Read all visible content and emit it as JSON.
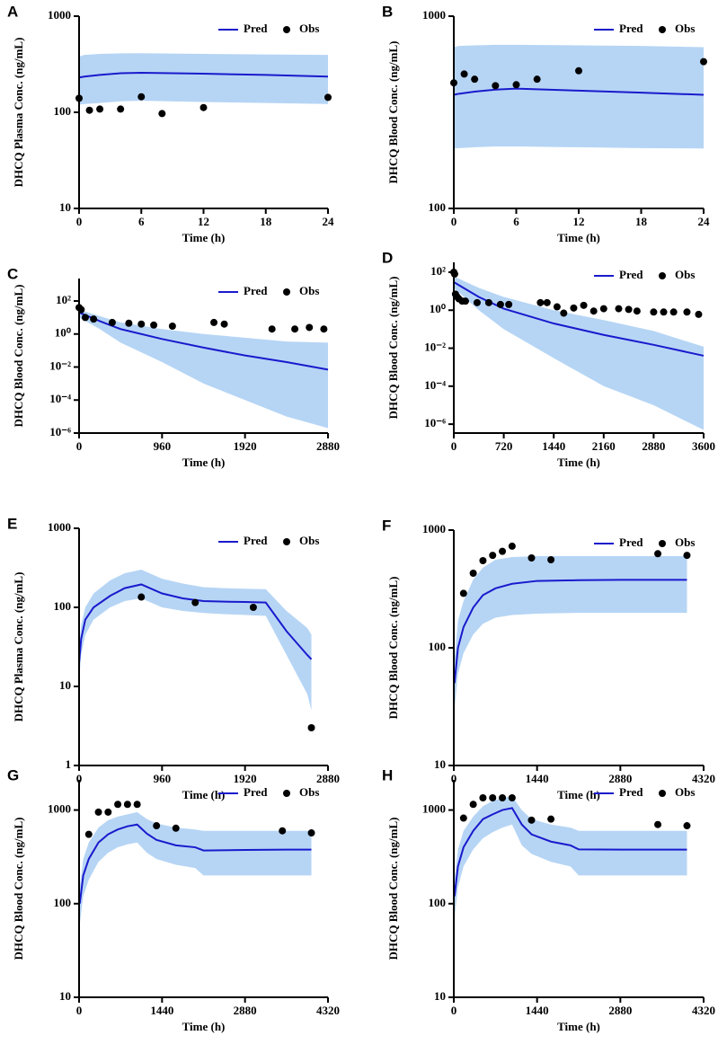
{
  "chart_data": [
    {
      "type": "line",
      "panel_label": "A",
      "xlabel": "Time (h)",
      "ylabel": "DHCQ Plasma Conc. (ng/mL)",
      "log_scale": true,
      "legend": "upper right",
      "band_color": "#b6d5f5",
      "xlim": [
        0,
        24
      ],
      "xticks": [
        0,
        6,
        12,
        18,
        24
      ],
      "ylim": [
        10,
        1000
      ],
      "yticks": [
        10,
        100,
        1000
      ],
      "series": [
        {
          "name": "Pred",
          "color": "#1a1acc",
          "x": [
            0,
            0.5,
            2,
            4,
            6,
            12,
            18,
            24
          ],
          "values": [
            230,
            235,
            245,
            255,
            258,
            252,
            245,
            235
          ],
          "lower": [
            120,
            122,
            125,
            130,
            132,
            128,
            125,
            122
          ],
          "upper": [
            380,
            395,
            405,
            410,
            412,
            405,
            400,
            395
          ]
        },
        {
          "name": "Obs",
          "color": "#000000",
          "x": [
            0,
            1,
            2,
            4,
            6,
            8,
            12,
            24
          ],
          "values": [
            140,
            105,
            108,
            108,
            145,
            97,
            112,
            143
          ]
        }
      ]
    },
    {
      "type": "line",
      "panel_label": "B",
      "xlabel": "Time (h)",
      "ylabel": "DHCQ Blood Conc. (ng/mL)",
      "log_scale": true,
      "legend": "upper right",
      "band_color": "#b6d5f5",
      "xlim": [
        0,
        24
      ],
      "xticks": [
        0,
        6,
        12,
        18,
        24
      ],
      "ylim": [
        100,
        1000
      ],
      "yticks": [
        100,
        1000
      ],
      "series": [
        {
          "name": "Pred",
          "color": "#1a1acc",
          "x": [
            0,
            0.5,
            2,
            4,
            6,
            12,
            18,
            24
          ],
          "values": [
            390,
            395,
            405,
            415,
            420,
            410,
            400,
            390
          ],
          "lower": [
            205,
            206,
            208,
            210,
            210,
            208,
            206,
            205
          ],
          "upper": [
            690,
            700,
            705,
            710,
            710,
            705,
            700,
            690
          ]
        },
        {
          "name": "Obs",
          "color": "#000000",
          "x": [
            0,
            1,
            2,
            4,
            6,
            8,
            12,
            24
          ],
          "values": [
            450,
            500,
            470,
            435,
            440,
            470,
            520,
            580
          ]
        }
      ]
    },
    {
      "type": "line",
      "panel_label": "C",
      "xlabel": "Time (h)",
      "ylabel": "DHCQ Blood Conc. (ng/mL)",
      "log_scale": true,
      "legend": "upper right",
      "band_color": "#b6d5f5",
      "xlim": [
        0,
        2880
      ],
      "xticks": [
        0,
        960,
        1920,
        2880
      ],
      "ylim": [
        1e-06,
        2300
      ],
      "yticks": [
        {
          "value": 1e-06,
          "label": "10⁻⁶"
        },
        {
          "value": 0.0001,
          "label": "10⁻⁴"
        },
        {
          "value": 0.01,
          "label": "10⁻²"
        },
        {
          "value": 1,
          "label": "10⁰"
        },
        {
          "value": 100,
          "label": "10²"
        }
      ],
      "series": [
        {
          "name": "Pred",
          "color": "#1a1acc",
          "x": [
            0,
            240,
            480,
            960,
            1440,
            1920,
            2400,
            2880
          ],
          "values": [
            20,
            6,
            2,
            0.5,
            0.15,
            0.05,
            0.02,
            0.007
          ],
          "lower": [
            10,
            2,
            0.3,
            0.02,
            0.001,
            0.0001,
            1e-05,
            2e-06
          ],
          "upper": [
            30,
            12,
            5,
            2,
            1,
            0.6,
            0.35,
            0.3
          ]
        },
        {
          "name": "Obs",
          "color": "#000000",
          "x": [
            0,
            24,
            72,
            168,
            384,
            576,
            720,
            864,
            1080,
            1560,
            1680,
            2232,
            2496,
            2664,
            2832
          ],
          "values": [
            40,
            30,
            10,
            8,
            5,
            4.5,
            4,
            3.5,
            3,
            5,
            4,
            2,
            2,
            2.5,
            2
          ]
        }
      ]
    },
    {
      "type": "line",
      "panel_label": "D",
      "xlabel": "Time (h)",
      "ylabel": "DHCQ Blood Conc. (ng/mL)",
      "log_scale": true,
      "legend": "upper right",
      "band_color": "#b6d5f5",
      "xlim": [
        0,
        3600
      ],
      "xticks": [
        0,
        720,
        1440,
        2160,
        2880,
        3600
      ],
      "ylim": [
        3.4e-07,
        330
      ],
      "yticks": [
        {
          "value": 1e-06,
          "label": "10⁻⁶"
        },
        {
          "value": 0.0001,
          "label": "10⁻⁴"
        },
        {
          "value": 0.01,
          "label": "10⁻²"
        },
        {
          "value": 1,
          "label": "10⁰"
        },
        {
          "value": 100,
          "label": "10²"
        }
      ],
      "series": [
        {
          "name": "Pred",
          "color": "#1a1acc",
          "x": [
            0,
            360,
            720,
            1440,
            2160,
            2880,
            3600
          ],
          "values": [
            30,
            5,
            1.2,
            0.2,
            0.05,
            0.015,
            0.004
          ],
          "lower": [
            15,
            1,
            0.1,
            0.003,
            0.0001,
            1e-05,
            5e-07
          ],
          "upper": [
            60,
            15,
            5,
            1,
            0.3,
            0.08,
            0.012
          ]
        },
        {
          "name": "Obs",
          "color": "#000000",
          "x": [
            0,
            12,
            24,
            48,
            72,
            120,
            168,
            336,
            504,
            672,
            792,
            1248,
            1344,
            1488,
            1584,
            1728,
            1872,
            2016,
            2160,
            2376,
            2520,
            2640,
            2880,
            3024,
            3168,
            3360,
            3528
          ],
          "values": [
            100,
            80,
            7,
            5,
            4,
            3,
            3,
            2.5,
            2.5,
            2,
            2,
            2.5,
            2.5,
            1.5,
            0.7,
            1.3,
            1.8,
            0.9,
            1.2,
            1.2,
            1.1,
            0.9,
            0.8,
            0.8,
            0.8,
            0.8,
            0.6
          ]
        }
      ]
    },
    {
      "type": "line",
      "panel_label": "E",
      "xlabel": "Time (h)",
      "ylabel": "DHCQ Plasma Conc. (ng/mL)",
      "log_scale": true,
      "legend": "upper right",
      "band_color": "#b6d5f5",
      "xlim": [
        0,
        2880
      ],
      "xticks": [
        0,
        960,
        1920,
        2880
      ],
      "ylim": [
        1,
        1000
      ],
      "yticks": [
        1,
        10,
        100,
        1000
      ],
      "series": [
        {
          "name": "Pred",
          "color": "#1a1acc",
          "x": [
            0,
            24,
            72,
            168,
            360,
            528,
            720,
            960,
            1200,
            1440,
            1680,
            1920,
            2160,
            2400,
            2640,
            2688
          ],
          "values": [
            20,
            40,
            70,
            100,
            140,
            175,
            195,
            150,
            130,
            120,
            118,
            117,
            115,
            50,
            25,
            22
          ],
          "lower": [
            12,
            25,
            45,
            70,
            100,
            120,
            130,
            100,
            90,
            85,
            82,
            80,
            78,
            25,
            8,
            5
          ],
          "upper": [
            30,
            60,
            100,
            150,
            220,
            270,
            300,
            230,
            200,
            180,
            175,
            172,
            170,
            90,
            55,
            45
          ]
        },
        {
          "name": "Obs",
          "color": "#000000",
          "x": [
            720,
            1344,
            2016,
            2688
          ],
          "values": [
            135,
            115,
            100,
            3
          ]
        }
      ]
    },
    {
      "type": "line",
      "panel_label": "F",
      "xlabel": "Time (h)",
      "ylabel": "DHCQ Blood Conc. (ng/mL)",
      "log_scale": true,
      "legend": "upper right",
      "band_color": "#b6d5f5",
      "xlim": [
        0,
        4320
      ],
      "xticks": [
        0,
        1440,
        2880,
        4320
      ],
      "ylim": [
        10,
        1000
      ],
      "yticks": [
        10,
        100,
        1000
      ],
      "series": [
        {
          "name": "Pred",
          "color": "#1a1acc",
          "x": [
            12,
            72,
            168,
            336,
            504,
            720,
            1008,
            1440,
            2160,
            2880,
            3600,
            4032
          ],
          "values": [
            50,
            100,
            150,
            220,
            280,
            320,
            350,
            370,
            375,
            378,
            378,
            378
          ],
          "lower": [
            30,
            60,
            90,
            130,
            160,
            180,
            190,
            195,
            198,
            198,
            198,
            198
          ],
          "upper": [
            80,
            170,
            250,
            380,
            480,
            560,
            590,
            600,
            600,
            600,
            600,
            600
          ]
        },
        {
          "name": "Obs",
          "color": "#000000",
          "x": [
            168,
            336,
            504,
            672,
            840,
            1008,
            1344,
            1680,
            3528,
            4032
          ],
          "values": [
            290,
            430,
            550,
            610,
            660,
            730,
            580,
            560,
            630,
            610
          ]
        }
      ]
    },
    {
      "type": "line",
      "panel_label": "G",
      "xlabel": "Time (h)",
      "ylabel": "DHCQ Blood Conc. (ng/mL)",
      "log_scale": true,
      "legend": "upper right",
      "band_color": "#b6d5f5",
      "xlim": [
        0,
        4320
      ],
      "xticks": [
        0,
        1440,
        2880,
        4320
      ],
      "ylim": [
        10,
        2100
      ],
      "yticks": [
        10,
        100,
        1000
      ],
      "series": [
        {
          "name": "Pred",
          "color": "#1a1acc",
          "x": [
            12,
            72,
            168,
            336,
            504,
            672,
            840,
            1008,
            1176,
            1344,
            1680,
            2016,
            2160,
            2880,
            3600,
            4032
          ],
          "values": [
            100,
            200,
            300,
            450,
            550,
            620,
            670,
            700,
            560,
            480,
            420,
            400,
            370,
            375,
            378,
            378
          ],
          "lower": [
            60,
            120,
            180,
            280,
            350,
            400,
            430,
            450,
            350,
            300,
            260,
            240,
            200,
            200,
            200,
            200
          ],
          "upper": [
            150,
            300,
            450,
            650,
            780,
            850,
            900,
            950,
            800,
            720,
            650,
            620,
            600,
            600,
            600,
            600
          ]
        },
        {
          "name": "Obs",
          "color": "#000000",
          "x": [
            168,
            336,
            504,
            672,
            840,
            1008,
            1344,
            1680,
            3528,
            4032
          ],
          "values": [
            550,
            950,
            950,
            1150,
            1150,
            1150,
            680,
            640,
            600,
            570
          ]
        }
      ]
    },
    {
      "type": "line",
      "panel_label": "H",
      "xlabel": "Time (h)",
      "ylabel": "DHCQ Blood Conc. (ng/mL)",
      "log_scale": true,
      "legend": "upper right",
      "band_color": "#b6d5f5",
      "xlim": [
        0,
        4320
      ],
      "xticks": [
        0,
        1440,
        2880,
        4320
      ],
      "ylim": [
        10,
        2100
      ],
      "yticks": [
        10,
        100,
        1000
      ],
      "series": [
        {
          "name": "Pred",
          "color": "#1a1acc",
          "x": [
            12,
            72,
            168,
            336,
            504,
            672,
            840,
            1008,
            1176,
            1344,
            1680,
            2016,
            2160,
            2880,
            3600,
            4032
          ],
          "values": [
            120,
            250,
            400,
            600,
            800,
            900,
            1000,
            1050,
            700,
            550,
            460,
            420,
            380,
            378,
            378,
            378
          ],
          "lower": [
            70,
            150,
            250,
            380,
            500,
            580,
            650,
            700,
            420,
            340,
            280,
            250,
            200,
            200,
            200,
            200
          ],
          "upper": [
            180,
            380,
            600,
            850,
            1100,
            1250,
            1350,
            1400,
            1000,
            800,
            700,
            650,
            600,
            600,
            600,
            600
          ]
        },
        {
          "name": "Obs",
          "color": "#000000",
          "x": [
            168,
            336,
            504,
            672,
            840,
            1008,
            1344,
            1680,
            3528,
            4032
          ],
          "values": [
            820,
            1150,
            1350,
            1350,
            1350,
            1350,
            780,
            800,
            700,
            680
          ]
        }
      ]
    }
  ]
}
